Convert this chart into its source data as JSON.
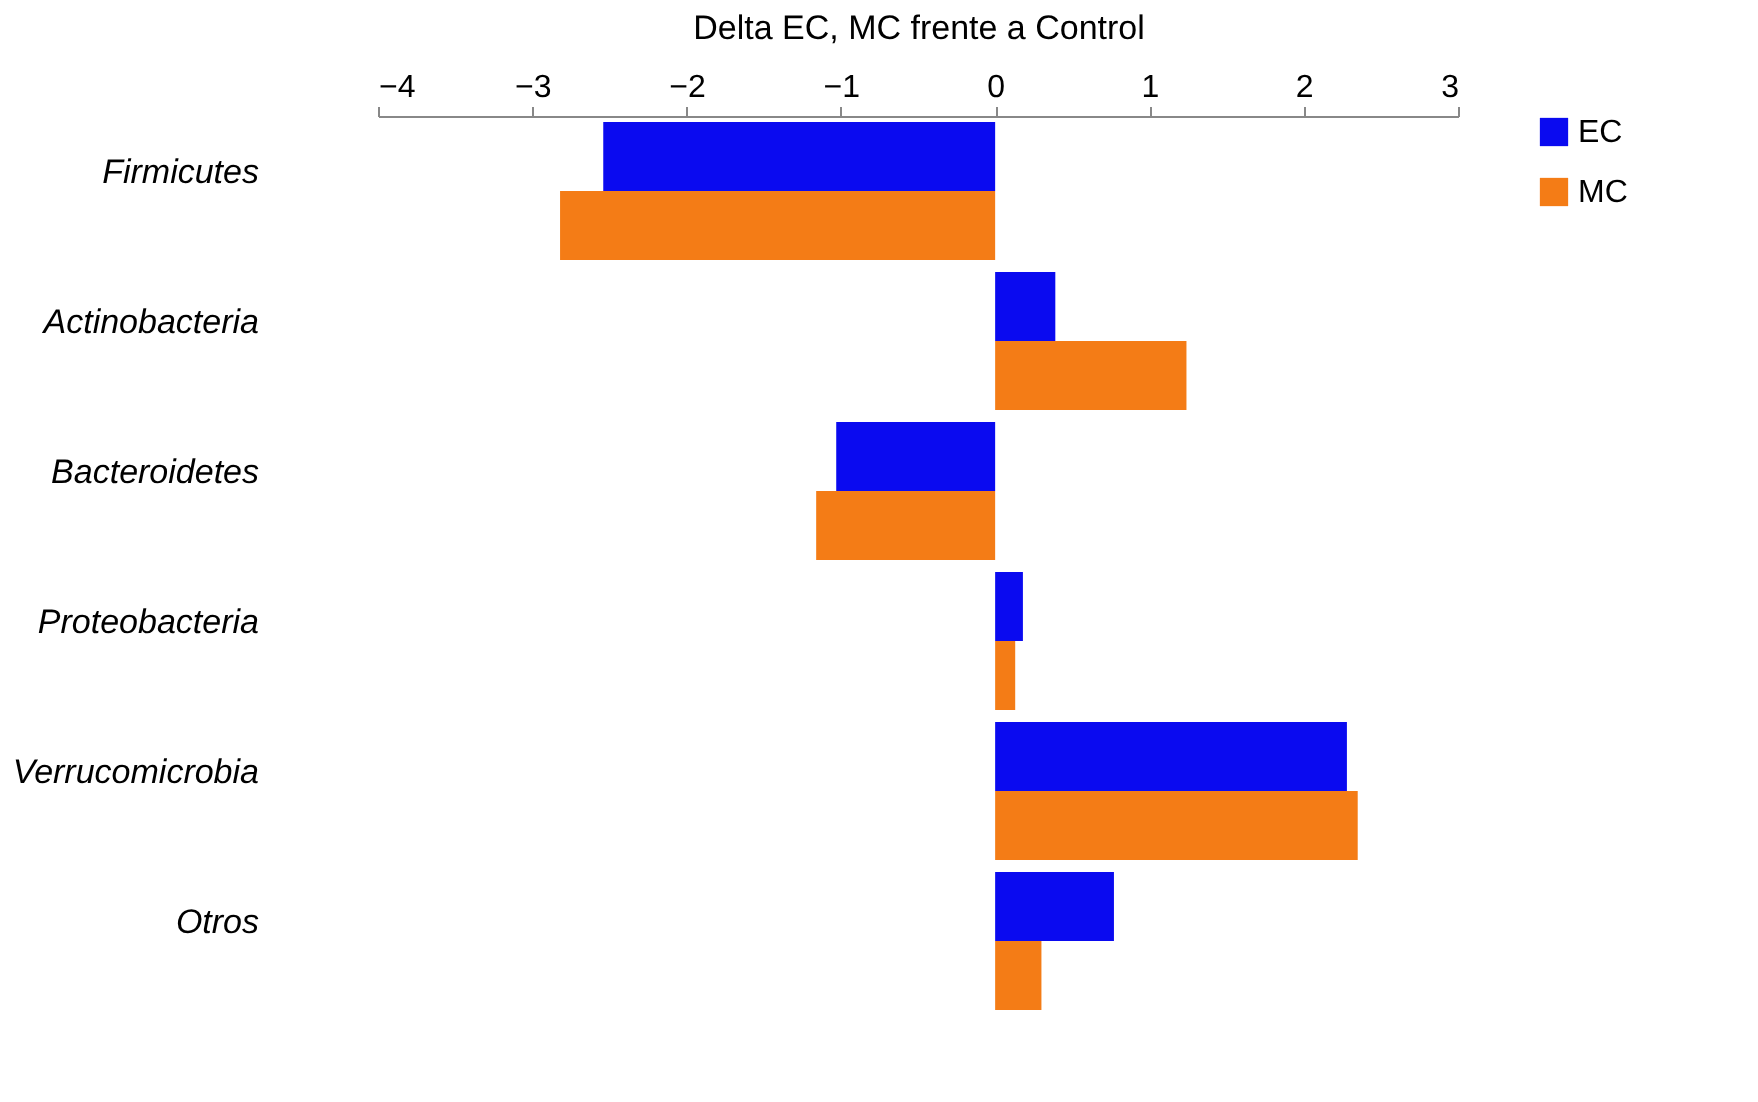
{
  "chart_data": {
    "type": "bar",
    "orientation": "horizontal",
    "xlabel": "Delta EC, MC frente a Control",
    "categories": [
      "Firmicutes",
      "Actinobacteria",
      "Bacteroidetes",
      "Proteobacteria",
      "Verrucomicrobia",
      "Otros"
    ],
    "series": [
      {
        "name": "EC",
        "color": "#0a0af0",
        "values": [
          -2.54,
          0.39,
          -1.03,
          0.18,
          2.28,
          0.77
        ]
      },
      {
        "name": "MC",
        "color": "#f47c16",
        "values": [
          -2.82,
          1.24,
          -1.16,
          0.13,
          2.35,
          0.3
        ]
      }
    ],
    "xlim": [
      -4,
      3
    ],
    "xticks": [
      -4,
      -3,
      -2,
      -1,
      0,
      1,
      2,
      3
    ],
    "grid": false,
    "legend": "right"
  }
}
